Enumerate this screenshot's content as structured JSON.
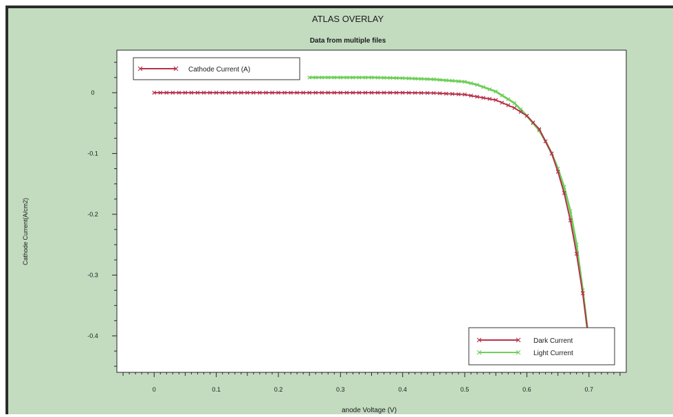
{
  "chart_data": {
    "type": "line",
    "title": "ATLAS OVERLAY",
    "subtitle": "Data from multiple files",
    "xlabel": "anode Voltage (V)",
    "ylabel": "Cathode Current(A/cm2)",
    "xlim": [
      -0.06,
      0.76
    ],
    "ylim": [
      -0.46,
      0.07
    ],
    "x_ticks": [
      0,
      0.1,
      0.2,
      0.3,
      0.4,
      0.5,
      0.6,
      0.7
    ],
    "x_tick_labels": [
      "0",
      "0.1",
      "0.2",
      "0.3",
      "0.4",
      "0.5",
      "0.6",
      "0.7"
    ],
    "y_ticks": [
      0,
      -0.1,
      -0.2,
      -0.3,
      -0.4
    ],
    "y_tick_labels": [
      "0",
      "-0.1",
      "-0.2",
      "-0.3",
      "-0.4"
    ],
    "grid": false,
    "legend_top": {
      "label": "Cathode Current (A)",
      "position": "top-left"
    },
    "legend_position": "bottom-right",
    "series": [
      {
        "name": "Dark Current",
        "color": "#b5314a",
        "marker": "x",
        "x": [
          0,
          0.05,
          0.1,
          0.15,
          0.2,
          0.25,
          0.3,
          0.35,
          0.4,
          0.45,
          0.5,
          0.55,
          0.58,
          0.6,
          0.62,
          0.64,
          0.65,
          0.66,
          0.67,
          0.68,
          0.69,
          0.7
        ],
        "y": [
          0,
          0,
          0,
          0,
          0,
          0,
          0,
          0,
          0,
          -0.0005,
          -0.003,
          -0.012,
          -0.025,
          -0.038,
          -0.06,
          -0.1,
          -0.13,
          -0.165,
          -0.21,
          -0.265,
          -0.33,
          -0.41
        ]
      },
      {
        "name": "Light Current",
        "color": "#6fcf5a",
        "marker": "x",
        "x": [
          0.25,
          0.3,
          0.35,
          0.4,
          0.45,
          0.5,
          0.52,
          0.55,
          0.58,
          0.6,
          0.62,
          0.63,
          0.64,
          0.65,
          0.66,
          0.67,
          0.68,
          0.69,
          0.7
        ],
        "y": [
          0.025,
          0.025,
          0.025,
          0.024,
          0.022,
          0.018,
          0.013,
          0.002,
          -0.017,
          -0.038,
          -0.062,
          -0.08,
          -0.1,
          -0.125,
          -0.155,
          -0.195,
          -0.25,
          -0.325,
          -0.41
        ]
      }
    ]
  }
}
